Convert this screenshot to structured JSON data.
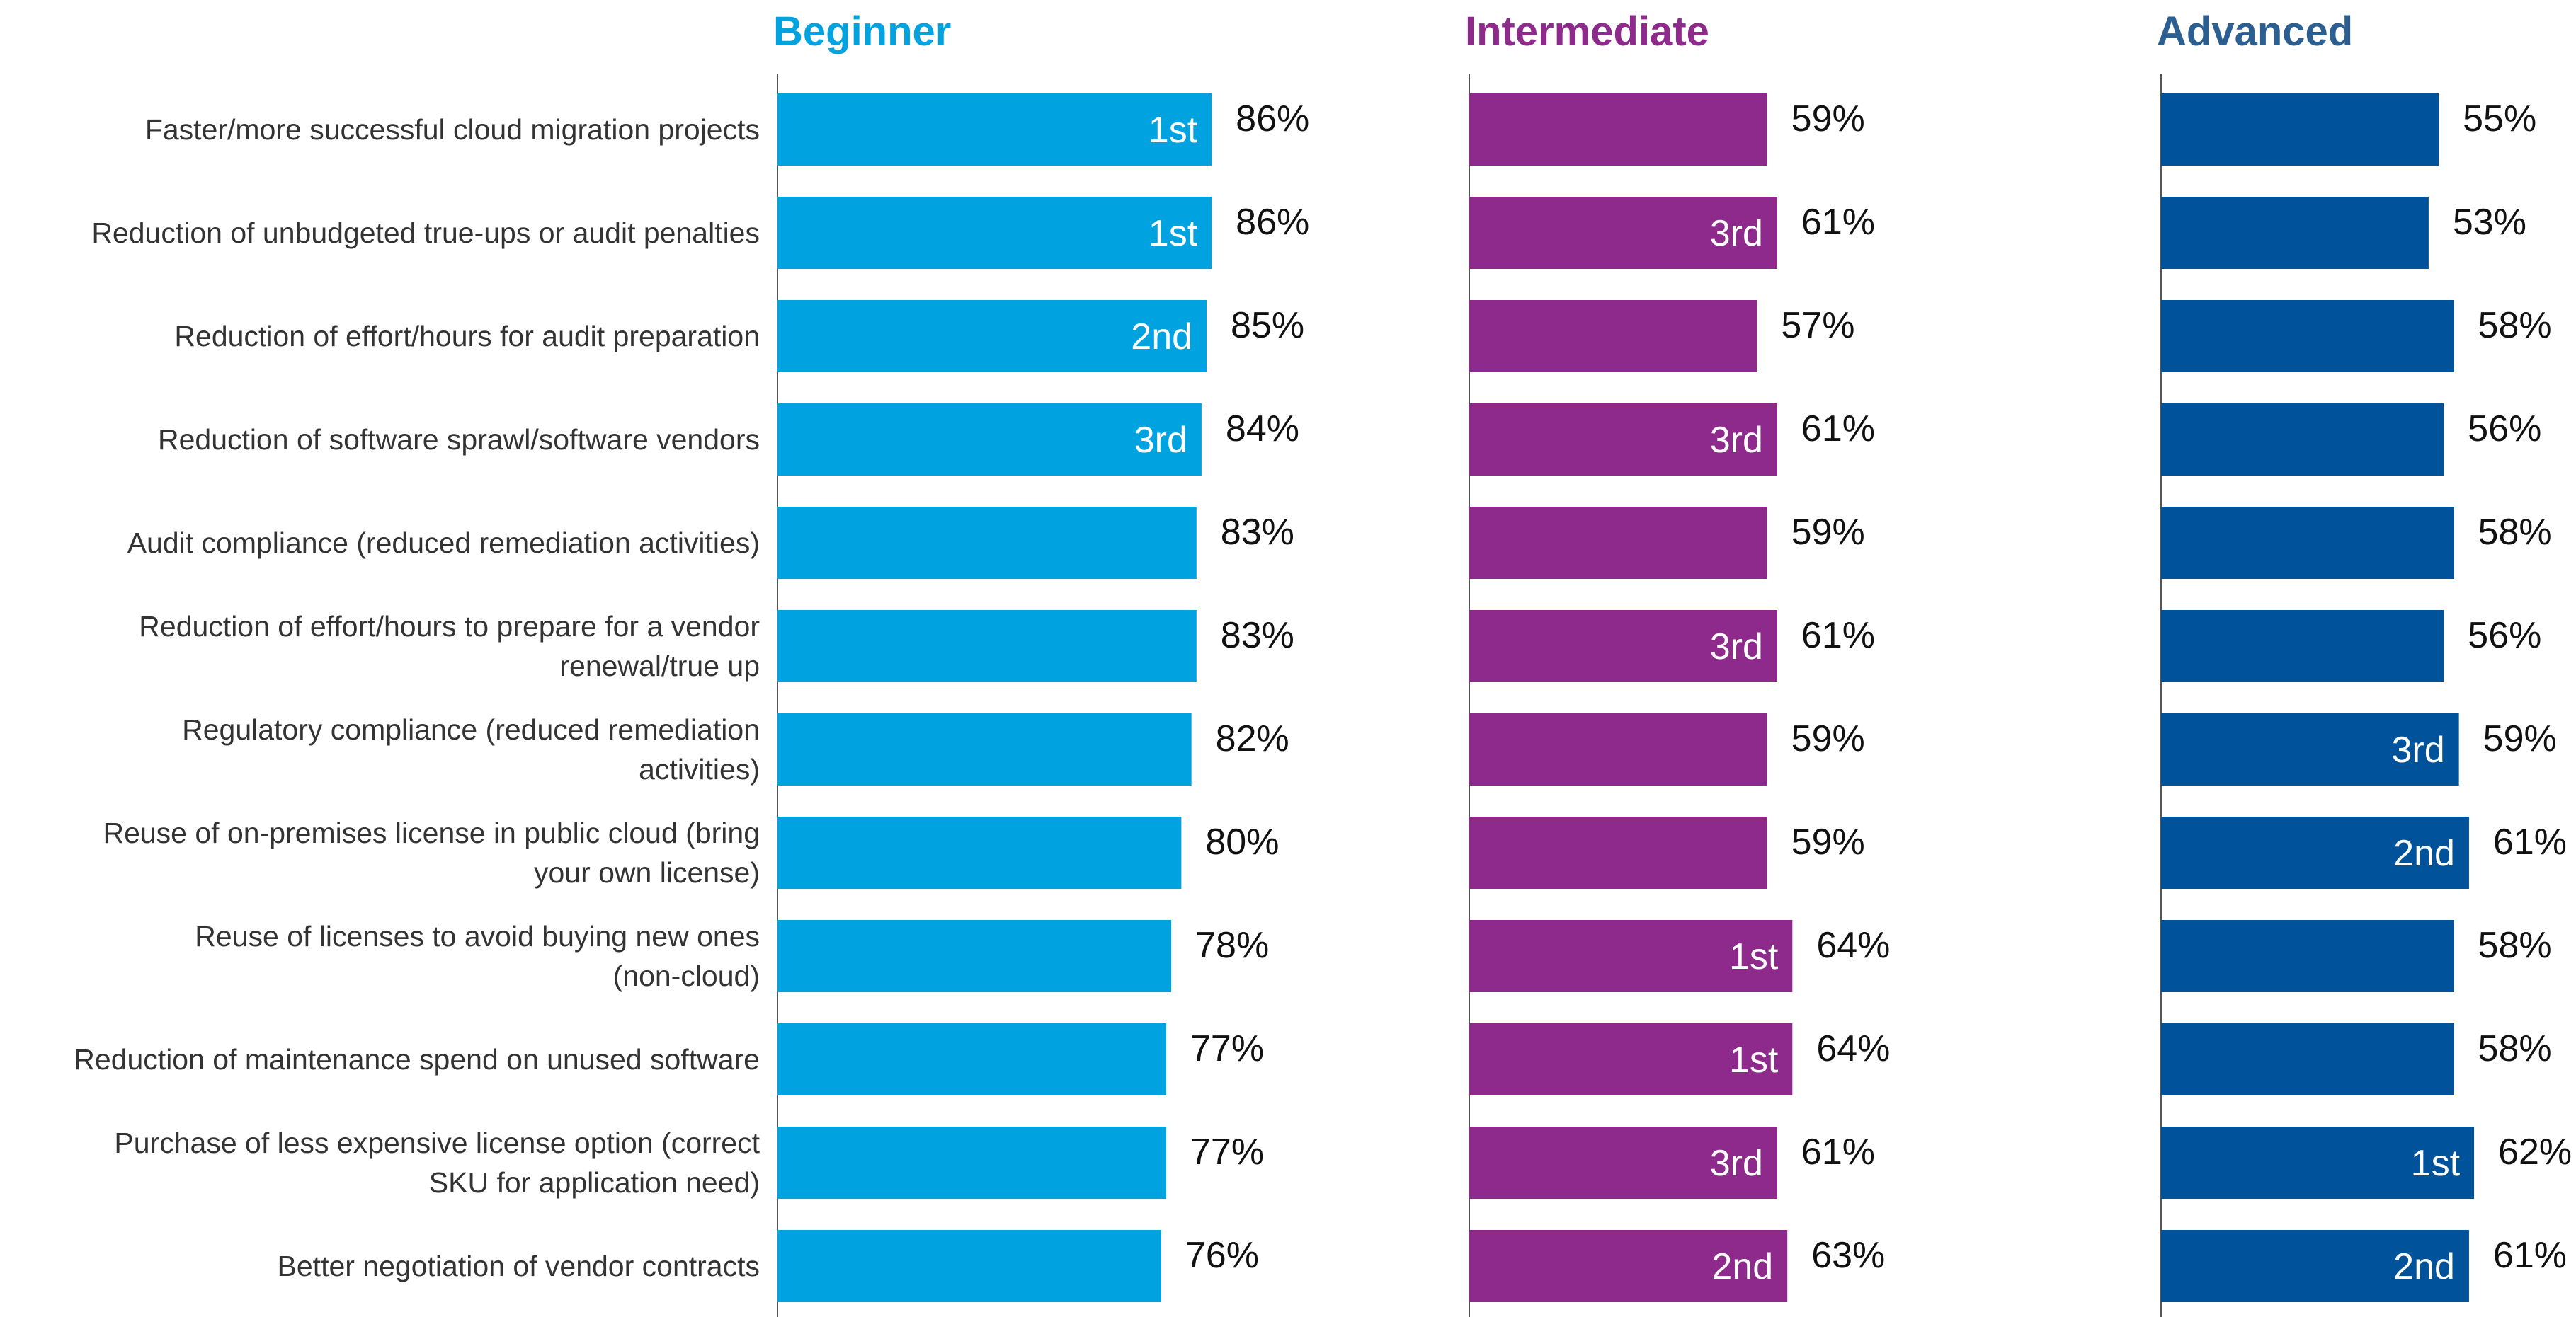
{
  "chart_data": {
    "type": "bar",
    "orientation": "horizontal",
    "categories": [
      "Faster/more successful cloud migration projects",
      "Reduction of unbudgeted true-ups or audit penalties",
      "Reduction of effort/hours for audit preparation",
      "Reduction of software sprawl/software vendors",
      "Audit compliance (reduced remediation activities)",
      "Reduction of effort/hours to prepare for a vendor renewal/true up",
      "Regulatory compliance (reduced remediation activities)",
      "Reuse of on-premises license in public cloud (bring your own license)",
      "Reuse of licenses to avoid buying new ones (non-cloud)",
      "Reduction of maintenance spend on unused software",
      "Purchase of less expensive license option (correct SKU for application need)",
      "Better negotiation of vendor contracts"
    ],
    "category_lines": [
      [
        "Faster/more successful cloud migration projects"
      ],
      [
        "Reduction of unbudgeted true-ups or audit penalties"
      ],
      [
        "Reduction of effort/hours for audit preparation"
      ],
      [
        "Reduction of software sprawl/software vendors"
      ],
      [
        "Audit compliance (reduced remediation activities)"
      ],
      [
        "Reduction of effort/hours to prepare for a vendor",
        "renewal/true up"
      ],
      [
        "Regulatory compliance (reduced remediation",
        "activities)"
      ],
      [
        "Reuse of on-premises license in public cloud (bring",
        "your own license)"
      ],
      [
        "Reuse of licenses to avoid buying new ones",
        "(non-cloud)"
      ],
      [
        "Reduction of maintenance spend on unused software"
      ],
      [
        "Purchase of less expensive license option (correct",
        "SKU for application need)"
      ],
      [
        "Better negotiation of vendor contracts"
      ]
    ],
    "series": [
      {
        "name": "Beginner",
        "color": "#00a3e0",
        "values": [
          86,
          86,
          85,
          84,
          83,
          83,
          82,
          80,
          78,
          77,
          77,
          76
        ],
        "value_labels": [
          "86%",
          "86%",
          "85%",
          "84%",
          "83%",
          "83%",
          "82%",
          "80%",
          "78%",
          "77%",
          "77%",
          "76%"
        ],
        "ranks": [
          "1st",
          "1st",
          "2nd",
          "3rd",
          "",
          "",
          "",
          "",
          "",
          "",
          "",
          ""
        ]
      },
      {
        "name": "Intermediate",
        "color": "#8e2a8c",
        "values": [
          59,
          61,
          57,
          61,
          59,
          61,
          59,
          59,
          64,
          64,
          61,
          63
        ],
        "value_labels": [
          "59%",
          "61%",
          "57%",
          "61%",
          "59%",
          "61%",
          "59%",
          "59%",
          "64%",
          "64%",
          "61%",
          "63%"
        ],
        "ranks": [
          "",
          "3rd",
          "",
          "3rd",
          "",
          "3rd",
          "",
          "",
          "1st",
          "1st",
          "3rd",
          "2nd"
        ]
      },
      {
        "name": "Advanced",
        "color": "#00529b",
        "title_color": "#2b5f91",
        "values": [
          55,
          53,
          58,
          56,
          58,
          56,
          59,
          61,
          58,
          58,
          62,
          61
        ],
        "value_labels": [
          "55%",
          "53%",
          "58%",
          "56%",
          "58%",
          "56%",
          "59%",
          "61%",
          "58%",
          "58%",
          "62%",
          "61%"
        ],
        "ranks": [
          "",
          "",
          "",
          "",
          "",
          "",
          "3rd",
          "2nd",
          "",
          "",
          "1st",
          "2nd"
        ]
      }
    ],
    "title": "",
    "xlabel": "",
    "ylabel": "",
    "xlim": [
      0,
      100
    ],
    "grid": false,
    "legend": "none"
  }
}
